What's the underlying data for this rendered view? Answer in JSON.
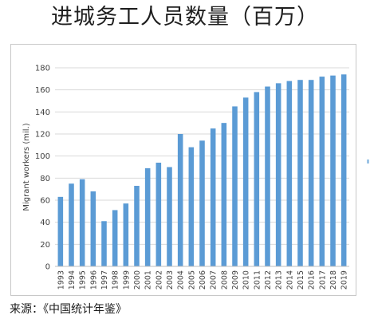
{
  "title": "进城务工人员数量（百万）",
  "source": "来源：《中国统计年鉴》",
  "chart_data": {
    "type": "bar",
    "ylabel": "Migrant workers (mil.)",
    "xlabel": "",
    "ylim": [
      0,
      180
    ],
    "yticks": [
      0,
      20,
      40,
      60,
      80,
      100,
      120,
      140,
      160,
      180
    ],
    "grid": true,
    "bar_color": "#5b9bd5",
    "grid_color": "#d9d9d9",
    "categories": [
      "1993",
      "1994",
      "1995",
      "1996",
      "1997",
      "1998",
      "1999",
      "2000",
      "2001",
      "2002",
      "2003",
      "2004",
      "2005",
      "2006",
      "2007",
      "2008",
      "2009",
      "2010",
      "2011",
      "2012",
      "2013",
      "2014",
      "2015",
      "2016",
      "2017",
      "2018",
      "2019"
    ],
    "values": [
      63,
      75,
      79,
      68,
      41,
      51,
      57,
      73,
      89,
      94,
      90,
      120,
      108,
      114,
      125,
      130,
      145,
      153,
      158,
      163,
      166,
      168,
      169,
      169,
      172,
      173,
      174
    ]
  }
}
